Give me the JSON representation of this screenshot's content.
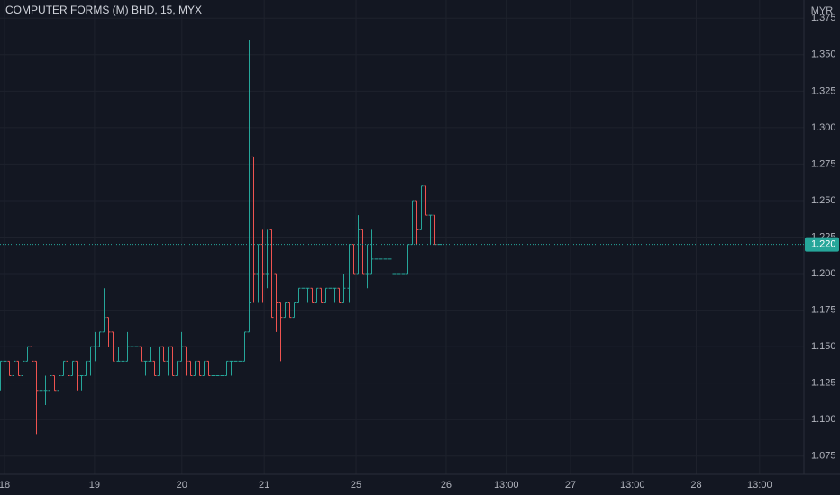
{
  "chart_data": {
    "type": "ohlc",
    "title": "COMPUTER FORMS (M) BHD, 15, MYX",
    "y_unit": "MYR",
    "up_color": "#26a69a",
    "down_color": "#ef5350",
    "grid": true,
    "xlim": [
      0,
      177.7
    ],
    "ylim": [
      1.0625,
      1.3875
    ],
    "xticks": [
      {
        "value": 1,
        "label": "18"
      },
      {
        "value": 20.9,
        "label": "19"
      },
      {
        "value": 40.2,
        "label": "20"
      },
      {
        "value": 58.4,
        "label": "21"
      },
      {
        "value": 78.7,
        "label": "25"
      },
      {
        "value": 98.6,
        "label": "26"
      },
      {
        "value": 111.9,
        "label": "13:00"
      },
      {
        "value": 126.1,
        "label": "27"
      },
      {
        "value": 139.8,
        "label": "13:00"
      },
      {
        "value": 153.9,
        "label": "28"
      },
      {
        "value": 167.9,
        "label": "13:00"
      }
    ],
    "yticks": [
      {
        "value": 1.075,
        "label": "1.075"
      },
      {
        "value": 1.1,
        "label": "1.100"
      },
      {
        "value": 1.125,
        "label": "1.125"
      },
      {
        "value": 1.15,
        "label": "1.150"
      },
      {
        "value": 1.175,
        "label": "1.175"
      },
      {
        "value": 1.2,
        "label": "1.200"
      },
      {
        "value": 1.225,
        "label": "1.225"
      },
      {
        "value": 1.25,
        "label": "1.250"
      },
      {
        "value": 1.275,
        "label": "1.275"
      },
      {
        "value": 1.3,
        "label": "1.300"
      },
      {
        "value": 1.325,
        "label": "1.325"
      },
      {
        "value": 1.35,
        "label": "1.350"
      },
      {
        "value": 1.375,
        "label": "1.375"
      }
    ],
    "last_price": {
      "value": 1.22,
      "label": "1.220"
    },
    "ohlc": [
      [
        1.13,
        1.14,
        1.12,
        1.14
      ],
      [
        1.14,
        1.14,
        1.13,
        1.14
      ],
      [
        1.14,
        1.14,
        1.13,
        1.13
      ],
      [
        1.13,
        1.14,
        1.13,
        1.14
      ],
      [
        1.14,
        1.14,
        1.13,
        1.13
      ],
      [
        1.13,
        1.14,
        1.13,
        1.14
      ],
      [
        1.14,
        1.15,
        1.14,
        1.15
      ],
      [
        1.15,
        1.15,
        1.14,
        1.14
      ],
      [
        1.14,
        1.14,
        1.09,
        1.12
      ],
      [
        1.12,
        1.12,
        1.12,
        1.12
      ],
      [
        1.12,
        1.13,
        1.11,
        1.12
      ],
      [
        1.12,
        1.13,
        1.12,
        1.13
      ],
      [
        1.13,
        1.13,
        1.12,
        1.12
      ],
      [
        1.12,
        1.13,
        1.12,
        1.13
      ],
      [
        1.13,
        1.14,
        1.13,
        1.14
      ],
      [
        1.14,
        1.14,
        1.13,
        1.13
      ],
      [
        1.13,
        1.14,
        1.13,
        1.14
      ],
      [
        1.14,
        1.14,
        1.12,
        1.13
      ],
      [
        1.13,
        1.13,
        1.12,
        1.13
      ],
      [
        1.13,
        1.14,
        1.13,
        1.14
      ],
      [
        1.14,
        1.15,
        1.13,
        1.15
      ],
      [
        1.15,
        1.16,
        1.14,
        1.15
      ],
      [
        1.15,
        1.16,
        1.15,
        1.16
      ],
      [
        1.16,
        1.19,
        1.16,
        1.17
      ],
      [
        1.17,
        1.17,
        1.15,
        1.16
      ],
      [
        1.16,
        1.16,
        1.14,
        1.14
      ],
      [
        1.14,
        1.15,
        1.14,
        1.14
      ],
      [
        1.14,
        1.14,
        1.13,
        1.14
      ],
      [
        1.14,
        1.16,
        1.14,
        1.15
      ],
      [
        1.15,
        1.15,
        1.15,
        1.15
      ],
      [
        1.15,
        1.15,
        1.15,
        1.15
      ],
      [
        1.15,
        1.15,
        1.14,
        1.14
      ],
      [
        1.14,
        1.14,
        1.13,
        1.14
      ],
      [
        1.14,
        1.15,
        1.14,
        1.14
      ],
      [
        1.14,
        1.14,
        1.13,
        1.13
      ],
      [
        1.13,
        1.15,
        1.13,
        1.15
      ],
      [
        1.15,
        1.15,
        1.14,
        1.14
      ],
      [
        1.14,
        1.15,
        1.13,
        1.15
      ],
      [
        1.15,
        1.15,
        1.13,
        1.13
      ],
      [
        1.13,
        1.14,
        1.13,
        1.14
      ],
      [
        1.14,
        1.16,
        1.14,
        1.15
      ],
      [
        1.15,
        1.15,
        1.13,
        1.14
      ],
      [
        1.14,
        1.14,
        1.13,
        1.13
      ],
      [
        1.13,
        1.14,
        1.13,
        1.14
      ],
      [
        1.14,
        1.14,
        1.13,
        1.13
      ],
      [
        1.13,
        1.14,
        1.13,
        1.14
      ],
      [
        1.14,
        1.14,
        1.13,
        1.13
      ],
      [
        1.13,
        1.13,
        1.13,
        1.13
      ],
      [
        1.13,
        1.13,
        1.13,
        1.13
      ],
      [
        1.13,
        1.13,
        1.13,
        1.13
      ],
      [
        1.13,
        1.14,
        1.13,
        1.14
      ],
      [
        1.14,
        1.14,
        1.13,
        1.14
      ],
      [
        1.14,
        1.14,
        1.14,
        1.14
      ],
      [
        1.14,
        1.14,
        1.14,
        1.14
      ],
      [
        1.14,
        1.16,
        1.14,
        1.16
      ],
      [
        1.16,
        1.36,
        1.16,
        1.18
      ],
      [
        1.28,
        1.28,
        1.18,
        1.2
      ],
      [
        1.2,
        1.22,
        1.18,
        1.22
      ],
      [
        1.22,
        1.23,
        1.18,
        1.2
      ],
      [
        1.2,
        1.23,
        1.19,
        1.2
      ],
      [
        1.23,
        1.23,
        1.17,
        1.17
      ],
      [
        1.2,
        1.2,
        1.16,
        1.18
      ],
      [
        1.18,
        1.18,
        1.14,
        1.17
      ],
      [
        1.17,
        1.18,
        1.17,
        1.18
      ],
      [
        1.18,
        1.18,
        1.17,
        1.17
      ],
      [
        1.17,
        1.18,
        1.17,
        1.18
      ],
      [
        1.18,
        1.19,
        1.18,
        1.19
      ],
      [
        1.19,
        1.19,
        1.19,
        1.19
      ],
      [
        1.19,
        1.19,
        1.18,
        1.19
      ],
      [
        1.19,
        1.19,
        1.18,
        1.18
      ],
      [
        1.18,
        1.19,
        1.18,
        1.19
      ],
      [
        1.19,
        1.19,
        1.18,
        1.18
      ],
      [
        1.18,
        1.19,
        1.18,
        1.19
      ],
      [
        1.19,
        1.19,
        1.19,
        1.19
      ],
      [
        1.19,
        1.19,
        1.18,
        1.19
      ],
      [
        1.19,
        1.19,
        1.18,
        1.18
      ],
      [
        1.18,
        1.2,
        1.18,
        1.19
      ],
      [
        1.19,
        1.22,
        1.18,
        1.22
      ],
      [
        1.22,
        1.22,
        1.2,
        1.2
      ],
      [
        1.2,
        1.24,
        1.2,
        1.23
      ],
      [
        1.23,
        1.23,
        1.2,
        1.2
      ],
      [
        1.2,
        1.22,
        1.19,
        1.2
      ],
      [
        1.2,
        1.23,
        1.2,
        1.21
      ],
      [
        1.21,
        1.21,
        1.21,
        1.21
      ],
      [
        1.21,
        1.21,
        1.21,
        1.21
      ],
      [
        1.21,
        1.21,
        1.21,
        1.21
      ],
      [
        1.21,
        1.21,
        1.21,
        1.21
      ],
      [
        1.2,
        1.2,
        1.2,
        1.2
      ],
      [
        1.2,
        1.2,
        1.2,
        1.2
      ],
      [
        1.2,
        1.2,
        1.2,
        1.2
      ],
      [
        1.2,
        1.22,
        1.2,
        1.22
      ],
      [
        1.22,
        1.25,
        1.22,
        1.25
      ],
      [
        1.25,
        1.25,
        1.22,
        1.23
      ],
      [
        1.23,
        1.26,
        1.23,
        1.26
      ],
      [
        1.26,
        1.26,
        1.24,
        1.24
      ],
      [
        1.24,
        1.24,
        1.22,
        1.24
      ],
      [
        1.24,
        1.24,
        1.22,
        1.22
      ],
      [
        1.22,
        1.22,
        1.22,
        1.22
      ]
    ]
  }
}
